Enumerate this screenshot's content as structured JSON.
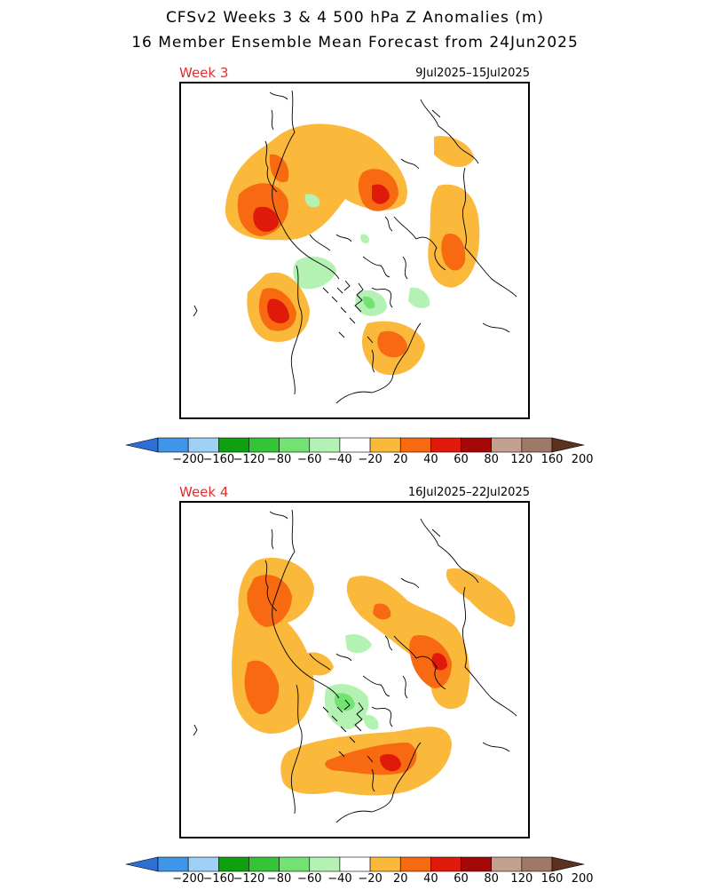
{
  "header": {
    "title_line1": "CFSv2 Weeks 3 & 4 500 hPa Z Anomalies (m)",
    "title_line2": "16 Member Ensemble Mean Forecast from 24Jun2025"
  },
  "panels": [
    {
      "label": "Week 3",
      "dates": "9Jul2025–15Jul2025"
    },
    {
      "label": "Week 4",
      "dates": "16Jul2025–22Jul2025"
    }
  ],
  "colorbar": {
    "labels": [
      "−200",
      "−160",
      "−120",
      "−80",
      "−60",
      "−40",
      "−20",
      "20",
      "40",
      "60",
      "80",
      "120",
      "160",
      "200"
    ],
    "colors": [
      "#2e6fd6",
      "#3f95e8",
      "#9fd0f5",
      "#0ea00e",
      "#35c435",
      "#72e272",
      "#b3f2b3",
      "#ffffff",
      "#fbb93c",
      "#f86a12",
      "#e01a0a",
      "#a40808",
      "#c4a090",
      "#a07868",
      "#5a3220"
    ]
  },
  "map_colors": {
    "pos20": "#fbb93c",
    "pos40": "#f86a12",
    "pos60": "#e01a0a",
    "neg20": "#b3f2b3",
    "neg40": "#72e272",
    "coast": "#000000"
  }
}
